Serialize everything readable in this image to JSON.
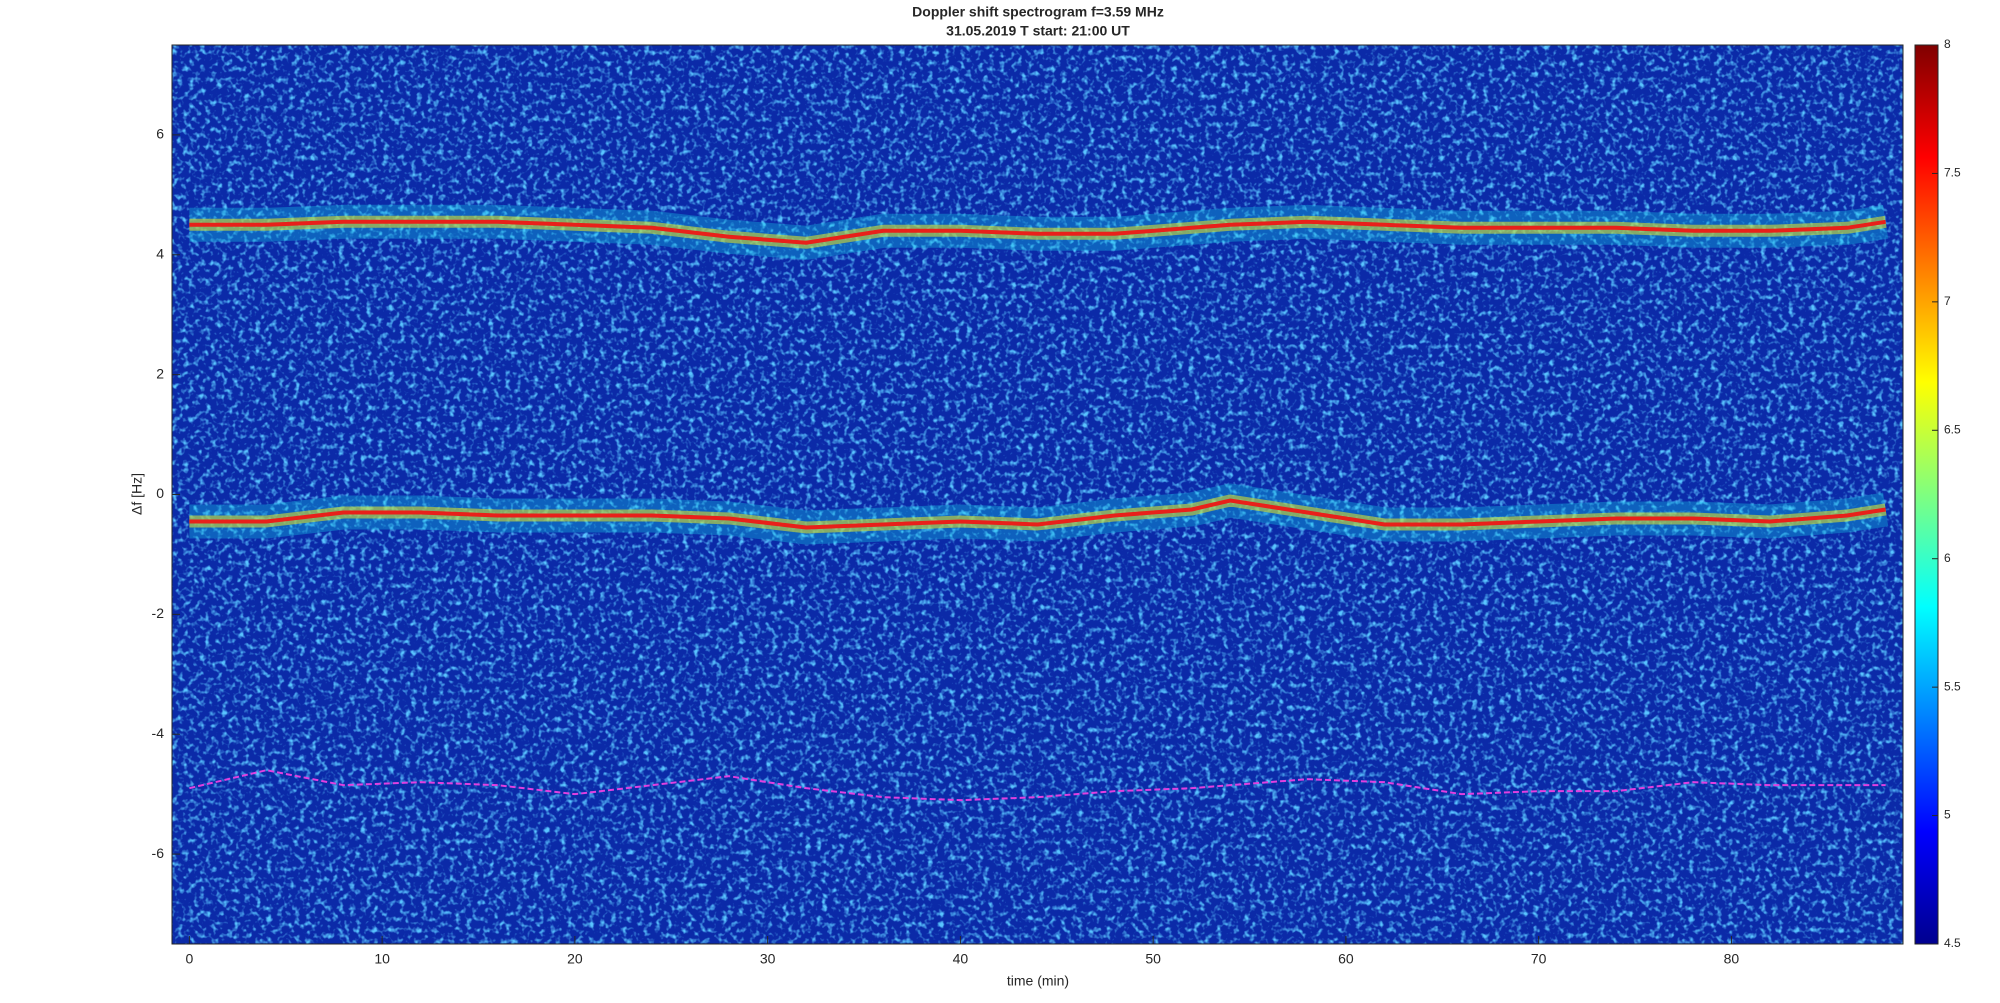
{
  "chart_data": {
    "type": "spectrogram",
    "title": "Doppler shift spectrogram f=3.59 MHz",
    "subtitle": "31.05.2019   T start: 21:00 UT",
    "x_label": "time (min)",
    "y_label": "Δf [Hz]",
    "xlim": [
      -0.9,
      88.9
    ],
    "xticks": [
      0,
      10,
      20,
      30,
      40,
      50,
      60,
      70,
      80
    ],
    "ylim": [
      -7.5,
      7.5
    ],
    "yticks": [
      -6,
      -4,
      -2,
      0,
      2,
      4,
      6
    ],
    "colorbar_lim": [
      4.5,
      8
    ],
    "colorbar_ticks": [
      4.5,
      5,
      5.5,
      6,
      6.5,
      7,
      7.5,
      8
    ],
    "x": [
      0,
      4,
      8,
      12,
      16,
      20,
      24,
      28,
      32,
      36,
      40,
      44,
      48,
      52,
      54,
      58,
      62,
      66,
      70,
      74,
      78,
      82,
      86,
      88
    ],
    "series": [
      {
        "color": "#e8201a",
        "values": [
          4.5,
          4.5,
          4.55,
          4.55,
          4.55,
          4.5,
          4.45,
          4.3,
          4.2,
          4.4,
          4.4,
          4.35,
          4.35,
          4.45,
          4.5,
          4.55,
          4.5,
          4.45,
          4.45,
          4.45,
          4.4,
          4.4,
          4.45,
          4.55
        ]
      },
      {
        "color": "#e8201a",
        "values": [
          -0.45,
          -0.45,
          -0.3,
          -0.3,
          -0.35,
          -0.35,
          -0.35,
          -0.4,
          -0.55,
          -0.5,
          -0.45,
          -0.5,
          -0.35,
          -0.25,
          -0.1,
          -0.3,
          -0.5,
          -0.5,
          -0.45,
          -0.4,
          -0.4,
          -0.45,
          -0.35,
          -0.25
        ]
      },
      {
        "color": "#e040e0",
        "values": [
          -4.9,
          -4.6,
          -4.85,
          -4.8,
          -4.85,
          -5.0,
          -4.85,
          -4.7,
          -4.9,
          -5.05,
          -5.1,
          -5.05,
          -4.95,
          -4.9,
          -4.85,
          -4.75,
          -4.8,
          -5.0,
          -4.95,
          -4.95,
          -4.8,
          -4.85,
          -4.85,
          -4.85
        ]
      }
    ],
    "grid": false
  }
}
